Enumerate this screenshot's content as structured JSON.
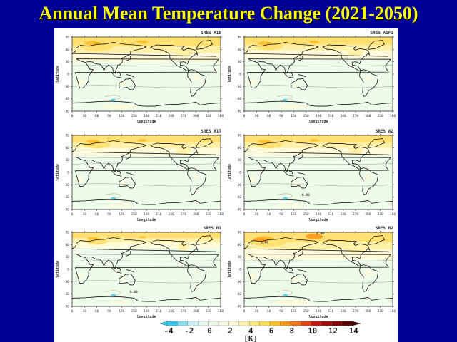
{
  "page": {
    "title": "Annual Mean Temperature Change (2021-2050)"
  },
  "chart_data": {
    "type": "heatmap",
    "title": "Annual Mean Temperature Change (2021-2050)",
    "panels": [
      {
        "name": "SRES A1B",
        "contour_labels": []
      },
      {
        "name": "SRES A1FI",
        "contour_labels": []
      },
      {
        "name": "SRES A1T",
        "contour_labels": []
      },
      {
        "name": "SRES A2",
        "contour_labels": [
          "0.00"
        ]
      },
      {
        "name": "SRES B1",
        "contour_labels": [
          "0.00"
        ]
      },
      {
        "name": "SRES B2",
        "contour_labels": [
          "5.00",
          "5.00"
        ]
      }
    ],
    "xlabel": "longitude",
    "ylabel": "latitude",
    "xlim": [
      0,
      360
    ],
    "ylim": [
      -90,
      90
    ],
    "xticks": [
      "0",
      "30",
      "60",
      "90",
      "120",
      "150",
      "180",
      "210",
      "240",
      "270",
      "300",
      "330",
      "360"
    ],
    "yticks": [
      "90",
      "60",
      "30",
      "0",
      "-30",
      "-60",
      "-90"
    ],
    "colorbar": {
      "unit": "[K]",
      "tick_labels": [
        "-4",
        "-2",
        "0",
        "2",
        "4",
        "6",
        "8",
        "10",
        "12",
        "14"
      ],
      "levels": [
        -4,
        -3,
        -2,
        -1,
        0,
        1,
        2,
        3,
        4,
        5,
        6,
        7,
        8,
        9,
        10,
        11,
        12,
        13,
        14
      ],
      "colors": [
        "#33ccee",
        "#88e0f4",
        "#c8f0f8",
        "#e8f8ee",
        "#eefbe8",
        "#f4fbe0",
        "#fffad8",
        "#fff4b0",
        "#ffec80",
        "#ffe050",
        "#ffc020",
        "#ff9a10",
        "#f57010",
        "#e84010",
        "#cc1010",
        "#a80808",
        "#880404",
        "#600000"
      ],
      "extend": "both"
    }
  }
}
